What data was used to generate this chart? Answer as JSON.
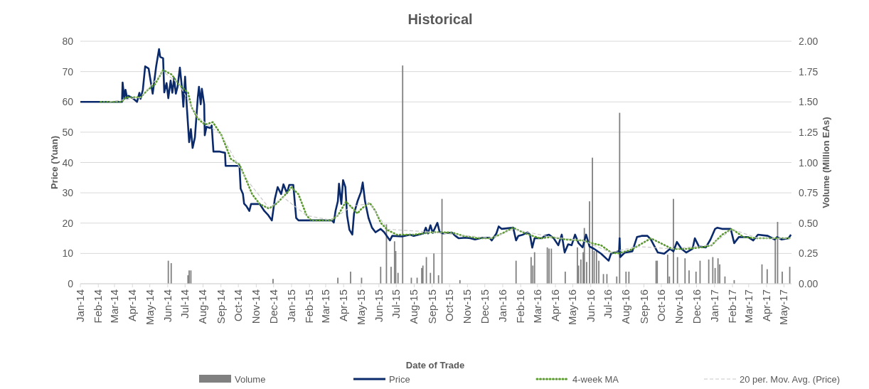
{
  "chart_data": {
    "type": "line",
    "title": "Historical",
    "xlabel": "Date of Trade",
    "ylabel": "Price (Yuan)",
    "y2label": "Volume (Million EAs)",
    "xlim": [
      "2014-01-01",
      "2017-05-14"
    ],
    "xticks": [
      {
        "value": "2014-01-01",
        "label": "Jan-14"
      },
      {
        "value": "2014-02-01",
        "label": "Feb-14"
      },
      {
        "value": "2014-03-01",
        "label": "Mar-14"
      },
      {
        "value": "2014-04-01",
        "label": "Apr-14"
      },
      {
        "value": "2014-05-01",
        "label": "May-14"
      },
      {
        "value": "2014-06-01",
        "label": "Jun-14"
      },
      {
        "value": "2014-07-01",
        "label": "Jul-14"
      },
      {
        "value": "2014-08-01",
        "label": "Aug-14"
      },
      {
        "value": "2014-09-01",
        "label": "Sep-14"
      },
      {
        "value": "2014-10-01",
        "label": "Oct-14"
      },
      {
        "value": "2014-11-01",
        "label": "Nov-14"
      },
      {
        "value": "2014-12-01",
        "label": "Dec-14"
      },
      {
        "value": "2015-01-01",
        "label": "Jan-15"
      },
      {
        "value": "2015-02-01",
        "label": "Feb-15"
      },
      {
        "value": "2015-03-01",
        "label": "Mar-15"
      },
      {
        "value": "2015-04-01",
        "label": "Apr-15"
      },
      {
        "value": "2015-05-01",
        "label": "May-15"
      },
      {
        "value": "2015-06-01",
        "label": "Jun-15"
      },
      {
        "value": "2015-07-01",
        "label": "Jul-15"
      },
      {
        "value": "2015-08-01",
        "label": "Aug-15"
      },
      {
        "value": "2015-09-01",
        "label": "Sep-15"
      },
      {
        "value": "2015-10-01",
        "label": "Oct-15"
      },
      {
        "value": "2015-11-01",
        "label": "Nov-15"
      },
      {
        "value": "2015-12-01",
        "label": "Dec-15"
      },
      {
        "value": "2016-01-01",
        "label": "Jan-16"
      },
      {
        "value": "2016-02-01",
        "label": "Feb-16"
      },
      {
        "value": "2016-03-01",
        "label": "Mar-16"
      },
      {
        "value": "2016-04-01",
        "label": "Apr-16"
      },
      {
        "value": "2016-05-01",
        "label": "May-16"
      },
      {
        "value": "2016-06-01",
        "label": "Jun-16"
      },
      {
        "value": "2016-07-01",
        "label": "Jul-16"
      },
      {
        "value": "2016-08-01",
        "label": "Aug-16"
      },
      {
        "value": "2016-09-01",
        "label": "Sep-16"
      },
      {
        "value": "2016-10-01",
        "label": "Oct-16"
      },
      {
        "value": "2016-11-01",
        "label": "Nov-16"
      },
      {
        "value": "2016-12-01",
        "label": "Dec-16"
      },
      {
        "value": "2017-01-01",
        "label": "Jan-17"
      },
      {
        "value": "2017-02-01",
        "label": "Feb-17"
      },
      {
        "value": "2017-03-01",
        "label": "Mar-17"
      },
      {
        "value": "2017-04-01",
        "label": "Apr-17"
      },
      {
        "value": "2017-05-01",
        "label": "May-17"
      }
    ],
    "ylim": [
      0,
      80
    ],
    "yticks": [
      0,
      10,
      20,
      30,
      40,
      50,
      60,
      70,
      80
    ],
    "y2lim": [
      0,
      2
    ],
    "y2ticks": [
      {
        "value": 0,
        "label": "0.00"
      },
      {
        "value": 0.25,
        "label": "0.25"
      },
      {
        "value": 0.5,
        "label": "0.50"
      },
      {
        "value": 0.75,
        "label": "0.75"
      },
      {
        "value": 1,
        "label": "1.00"
      },
      {
        "value": 1.25,
        "label": "1.25"
      },
      {
        "value": 1.5,
        "label": "1.50"
      },
      {
        "value": 1.75,
        "label": "1.75"
      },
      {
        "value": 2,
        "label": "2.00"
      }
    ],
    "grid": "y",
    "legend": "bottom",
    "series": [
      {
        "name": "Volume",
        "type": "bar",
        "axis": "y2",
        "color": "#808080",
        "x": [
          "2014-06-02",
          "2014-06-07",
          "2014-07-06",
          "2014-07-08",
          "2014-07-11",
          "2014-11-30",
          "2015-03-22",
          "2015-04-13",
          "2015-05-02",
          "2015-06-04",
          "2015-06-14",
          "2015-06-22",
          "2015-06-28",
          "2015-06-30",
          "2015-07-04",
          "2015-07-12",
          "2015-07-27",
          "2015-08-06",
          "2015-08-14",
          "2015-08-16",
          "2015-08-22",
          "2015-08-29",
          "2015-09-04",
          "2015-09-12",
          "2015-09-18",
          "2015-10-19",
          "2016-01-24",
          "2016-02-19",
          "2016-02-22",
          "2016-02-25",
          "2016-03-18",
          "2016-03-21",
          "2016-03-25",
          "2016-04-18",
          "2016-05-09",
          "2016-05-11",
          "2016-05-15",
          "2016-05-19",
          "2016-05-21",
          "2016-05-25",
          "2016-05-30",
          "2016-06-04",
          "2016-06-07",
          "2016-06-11",
          "2016-06-15",
          "2016-06-23",
          "2016-06-29",
          "2016-07-16",
          "2016-07-21",
          "2016-08-01",
          "2016-08-06",
          "2016-09-22",
          "2016-09-24",
          "2016-10-12",
          "2016-10-15",
          "2016-10-22",
          "2016-10-29",
          "2016-11-11",
          "2016-11-18",
          "2016-11-30",
          "2016-12-07",
          "2016-12-22",
          "2016-12-29",
          "2017-01-02",
          "2017-01-07",
          "2017-01-10",
          "2017-01-19",
          "2017-02-04",
          "2017-03-24",
          "2017-04-02",
          "2017-04-16",
          "2017-04-20",
          "2017-04-28",
          "2017-05-11"
        ],
        "values": [
          0.19,
          0.17,
          0.07,
          0.11,
          0.11,
          0.04,
          0.05,
          0.1,
          0.05,
          0.14,
          0.49,
          0.14,
          0.35,
          0.27,
          0.09,
          1.8,
          0.05,
          0.05,
          0.13,
          0.15,
          0.22,
          0.09,
          0.25,
          0.07,
          0.7,
          0.03,
          0.19,
          0.22,
          0.15,
          0.26,
          0.3,
          0.29,
          0.29,
          0.1,
          0.3,
          0.15,
          0.2,
          0.26,
          0.46,
          0.18,
          0.68,
          1.04,
          0.27,
          0.28,
          0.19,
          0.08,
          0.08,
          0.06,
          1.41,
          0.1,
          0.1,
          0.19,
          0.19,
          0.24,
          0.06,
          0.7,
          0.22,
          0.21,
          0.11,
          0.1,
          0.19,
          0.2,
          0.22,
          0.13,
          0.21,
          0.16,
          0.06,
          0.03,
          0.16,
          0.12,
          0.36,
          0.51,
          0.1,
          0.14
        ]
      },
      {
        "name": "Price",
        "color": "#0b2a6b",
        "line_style": "solid",
        "x": [
          "2014-01-01",
          "2014-03-14",
          "2014-03-15",
          "2014-03-18",
          "2014-03-20",
          "2014-03-23",
          "2014-03-25",
          "2014-04-03",
          "2014-04-09",
          "2014-04-13",
          "2014-04-15",
          "2014-04-19",
          "2014-04-23",
          "2014-04-29",
          "2014-05-02",
          "2014-05-06",
          "2014-05-12",
          "2014-05-17",
          "2014-05-19",
          "2014-05-24",
          "2014-05-26",
          "2014-05-30",
          "2014-06-02",
          "2014-06-06",
          "2014-06-09",
          "2014-06-12",
          "2014-06-15",
          "2014-06-18",
          "2014-06-22",
          "2014-06-26",
          "2014-06-28",
          "2014-07-01",
          "2014-07-04",
          "2014-07-08",
          "2014-07-11",
          "2014-07-14",
          "2014-07-18",
          "2014-07-23",
          "2014-07-25",
          "2014-07-28",
          "2014-07-30",
          "2014-08-03",
          "2014-08-04",
          "2014-08-07",
          "2014-08-13",
          "2014-08-16",
          "2014-08-19",
          "2014-08-30",
          "2014-09-08",
          "2014-09-09",
          "2014-10-03",
          "2014-10-05",
          "2014-10-09",
          "2014-10-11",
          "2014-10-15",
          "2014-10-20",
          "2014-10-23",
          "2014-11-07",
          "2014-11-15",
          "2014-11-21",
          "2014-11-28",
          "2014-12-03",
          "2014-12-08",
          "2014-12-14",
          "2014-12-18",
          "2014-12-24",
          "2014-12-28",
          "2015-01-04",
          "2015-01-09",
          "2015-01-13",
          "2015-03-12",
          "2015-03-15",
          "2015-03-18",
          "2015-03-22",
          "2015-03-24",
          "2015-03-28",
          "2015-03-31",
          "2015-04-04",
          "2015-04-07",
          "2015-04-11",
          "2015-04-16",
          "2015-04-19",
          "2015-04-25",
          "2015-05-01",
          "2015-05-04",
          "2015-05-08",
          "2015-05-14",
          "2015-05-20",
          "2015-05-26",
          "2015-06-04",
          "2015-06-10",
          "2015-06-20",
          "2015-06-24",
          "2015-07-11",
          "2015-07-25",
          "2015-07-31",
          "2015-08-17",
          "2015-08-21",
          "2015-08-25",
          "2015-08-29",
          "2015-09-02",
          "2015-09-10",
          "2015-09-14",
          "2015-09-20",
          "2015-10-05",
          "2015-10-11",
          "2015-10-17",
          "2015-10-29",
          "2015-11-06",
          "2015-11-14",
          "2015-11-27",
          "2015-12-09",
          "2015-12-13",
          "2015-12-21",
          "2015-12-25",
          "2015-12-30",
          "2016-01-19",
          "2016-01-24",
          "2016-01-28",
          "2016-02-05",
          "2016-02-13",
          "2016-02-17",
          "2016-02-21",
          "2016-02-25",
          "2016-03-09",
          "2016-03-13",
          "2016-03-21",
          "2016-03-29",
          "2016-04-06",
          "2016-04-12",
          "2016-04-17",
          "2016-04-23",
          "2016-04-29",
          "2016-05-05",
          "2016-05-11",
          "2016-05-18",
          "2016-05-24",
          "2016-05-30",
          "2016-06-07",
          "2016-06-19",
          "2016-07-02",
          "2016-07-06",
          "2016-07-18",
          "2016-07-20",
          "2016-07-21",
          "2016-07-22",
          "2016-07-30",
          "2016-08-12",
          "2016-08-20",
          "2016-08-28",
          "2016-09-07",
          "2016-09-13",
          "2016-09-25",
          "2016-10-06",
          "2016-10-16",
          "2016-10-22",
          "2016-10-28",
          "2016-11-05",
          "2016-11-13",
          "2016-11-24",
          "2016-11-28",
          "2016-12-05",
          "2016-12-17",
          "2016-12-25",
          "2017-01-02",
          "2017-01-06",
          "2017-01-14",
          "2017-01-29",
          "2017-02-04",
          "2017-02-12",
          "2017-02-28",
          "2017-03-09",
          "2017-03-17",
          "2017-04-03",
          "2017-04-15",
          "2017-04-19",
          "2017-04-27",
          "2017-05-09",
          "2017-05-13"
        ],
        "values": [
          60,
          60,
          66.4,
          61,
          64,
          61,
          62,
          61,
          60,
          63,
          61,
          64,
          71.7,
          71,
          67.4,
          62.7,
          71.7,
          77.4,
          74.8,
          74.4,
          63.1,
          66.2,
          61.2,
          67,
          63,
          67.8,
          62.7,
          65,
          71.3,
          63.9,
          58.4,
          68.3,
          58.4,
          46.7,
          51,
          44.8,
          48.3,
          61.5,
          65,
          59.2,
          64.3,
          59.2,
          49,
          51.8,
          51.4,
          52.2,
          43.6,
          43.6,
          43.2,
          38.9,
          38.9,
          31.4,
          29.6,
          26.4,
          25.6,
          24,
          26.3,
          26.3,
          24,
          22.8,
          20.9,
          27.9,
          31.9,
          29.6,
          32.8,
          29.9,
          32.6,
          32.6,
          21.7,
          20.9,
          20.9,
          20.2,
          24,
          27.2,
          33,
          26.3,
          34.2,
          31.9,
          22.5,
          17.8,
          16.2,
          23.2,
          27.2,
          30.3,
          33.4,
          27.2,
          21.7,
          18.5,
          17,
          18.1,
          17,
          14.3,
          15.8,
          15.6,
          16.2,
          15.8,
          16.6,
          18.5,
          16.6,
          19.3,
          16.8,
          20.1,
          17,
          16.6,
          16.9,
          15.8,
          15,
          15.2,
          15,
          14.6,
          15.2,
          15.2,
          14.3,
          16.6,
          18.9,
          18.1,
          18.5,
          14.3,
          15.8,
          16.2,
          17,
          16.2,
          11.9,
          15,
          15,
          15.8,
          16.2,
          15,
          12.7,
          16.2,
          10.3,
          13,
          12.7,
          16.2,
          13.4,
          12,
          16.2,
          12.3,
          11.5,
          9.9,
          7.6,
          9.9,
          10.7,
          10.7,
          15,
          8.8,
          10.3,
          10.7,
          15.4,
          15.8,
          15.8,
          14.6,
          10.3,
          9.9,
          11.5,
          10.7,
          13.8,
          11.5,
          10.3,
          11.5,
          15,
          12.3,
          12,
          14.6,
          18.1,
          18.5,
          18.1,
          18.1,
          13.4,
          15.4,
          15.4,
          14.3,
          16.2,
          15.8,
          14.6,
          15.4,
          14.6,
          15,
          16.2
        ]
      },
      {
        "name": "4-week MA",
        "color": "#5a9a2e",
        "line_style": "dotted",
        "x": [
          "2014-02-05",
          "2014-03-13",
          "2014-03-21",
          "2014-04-15",
          "2014-04-27",
          "2014-05-10",
          "2014-05-24",
          "2014-06-08",
          "2014-06-20",
          "2014-07-06",
          "2014-07-12",
          "2014-07-23",
          "2014-08-04",
          "2014-08-18",
          "2014-09-02",
          "2014-09-18",
          "2014-10-03",
          "2014-10-13",
          "2014-10-25",
          "2014-11-07",
          "2014-11-23",
          "2014-12-05",
          "2014-12-18",
          "2015-01-01",
          "2015-01-13",
          "2015-01-27",
          "2015-02-04",
          "2015-03-10",
          "2015-03-22",
          "2015-04-05",
          "2015-04-15",
          "2015-04-25",
          "2015-05-02",
          "2015-05-16",
          "2015-05-26",
          "2015-06-04",
          "2015-06-16",
          "2015-07-02",
          "2015-07-31",
          "2015-09-02",
          "2015-10-05",
          "2015-10-25",
          "2015-11-19",
          "2015-12-13",
          "2016-01-03",
          "2016-01-19",
          "2016-02-09",
          "2016-03-05",
          "2016-03-25",
          "2016-04-19",
          "2016-05-18",
          "2016-06-03",
          "2016-06-19",
          "2016-07-06",
          "2016-07-18",
          "2016-08-08",
          "2016-08-20",
          "2016-09-13",
          "2016-10-04",
          "2016-10-20",
          "2016-11-13",
          "2016-12-09",
          "2016-12-27",
          "2017-01-14",
          "2017-01-31",
          "2017-02-20",
          "2017-03-17",
          "2017-04-19",
          "2017-05-13"
        ],
        "values": [
          60,
          60,
          61.5,
          61.5,
          63.9,
          65.8,
          70.5,
          69,
          65.8,
          63.1,
          58.4,
          54.5,
          52.5,
          53.3,
          49,
          41.2,
          39.3,
          35,
          29.5,
          26.3,
          24.8,
          26.3,
          28.7,
          31.8,
          29.5,
          22.5,
          20.9,
          20.9,
          22.5,
          27.1,
          25.2,
          23.2,
          24.8,
          26.7,
          24,
          20.1,
          17.7,
          16.2,
          16.2,
          17,
          16.9,
          15.8,
          15,
          15,
          16.9,
          18.5,
          16.6,
          15,
          15.4,
          14.6,
          14.3,
          13.4,
          12.7,
          10.3,
          10,
          11.1,
          12.3,
          15,
          13,
          11.5,
          11.5,
          12,
          12.7,
          16.2,
          18.1,
          15.4,
          15,
          15,
          15
        ]
      },
      {
        "name": "20 per. Mov. Avg. (Price)",
        "type": "line",
        "color": "#c8c8c8",
        "line_style": "dashed",
        "x": [
          "2014-02-20",
          "2014-04-15",
          "2014-05-24",
          "2014-06-20",
          "2014-07-23",
          "2014-09-02",
          "2014-10-13",
          "2014-11-23",
          "2014-12-18",
          "2015-01-27",
          "2015-03-10",
          "2015-04-15",
          "2015-05-16",
          "2015-06-16",
          "2015-09-02",
          "2015-12-13",
          "2016-01-19",
          "2016-03-25",
          "2016-05-18",
          "2016-07-06",
          "2016-08-20",
          "2016-10-20",
          "2016-12-27",
          "2017-01-31",
          "2017-03-17",
          "2017-05-13"
        ],
        "values": [
          60,
          61.5,
          70,
          66,
          55,
          49,
          35,
          25,
          28.5,
          22.5,
          21,
          25.5,
          26.5,
          18,
          17,
          15,
          18,
          15.4,
          14.3,
          10.3,
          12.3,
          11.5,
          12.8,
          18,
          15,
          15
        ]
      }
    ]
  }
}
